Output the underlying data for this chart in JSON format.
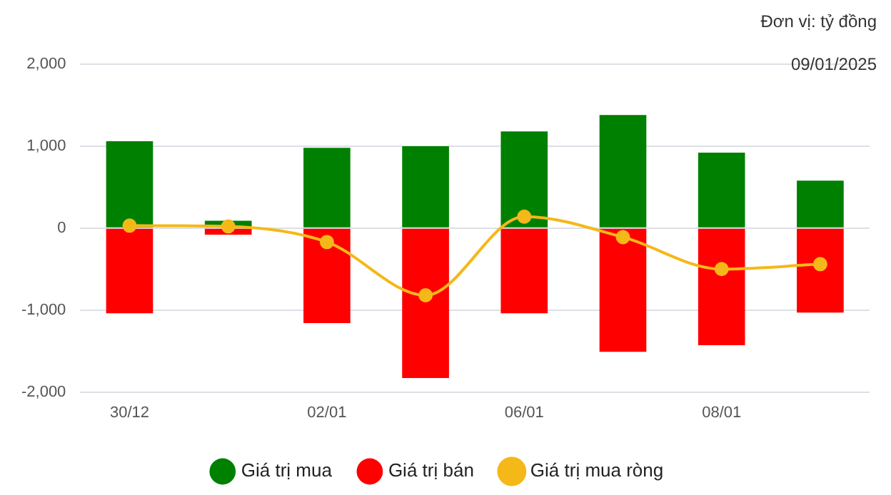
{
  "chart_data": {
    "type": "bar",
    "stacked": true,
    "annotations": [
      "Đơn vị: tỷ đồng",
      "09/01/2025"
    ],
    "categories": [
      "30/12",
      null,
      "02/01",
      null,
      "06/01",
      null,
      "08/01",
      null
    ],
    "series": [
      {
        "name": "Giá trị mua",
        "color": "#008000",
        "values": [
          1060,
          90,
          980,
          1000,
          1180,
          1380,
          920,
          580
        ]
      },
      {
        "name": "Giá trị bán",
        "color": "#ff0000",
        "values": [
          -1040,
          -80,
          -1160,
          -1830,
          -1040,
          -1510,
          -1430,
          -1030
        ]
      },
      {
        "name": "Giá trị mua ròng",
        "type": "line",
        "color": "#f5b819",
        "values": [
          30,
          20,
          -170,
          -820,
          140,
          -110,
          -500,
          -440
        ]
      }
    ],
    "ylim": [
      -2000,
      2000
    ],
    "yticks": [
      {
        "value": -2000,
        "label": "-2,000"
      },
      {
        "value": -1000,
        "label": "-1,000"
      },
      0,
      {
        "value": 1000,
        "label": "1,000"
      },
      {
        "value": 2000,
        "label": "2,000"
      }
    ],
    "grid": "y",
    "legend": "bottom",
    "marker": "circle"
  }
}
